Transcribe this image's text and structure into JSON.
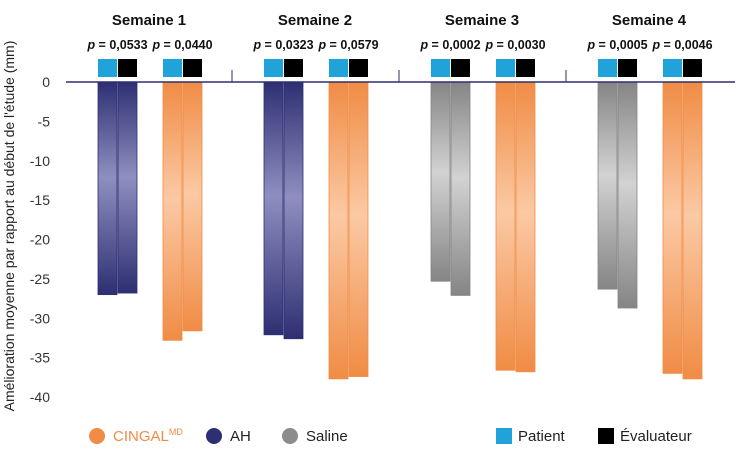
{
  "chart_data": {
    "type": "bar",
    "ylabel": "Amélioration moyenne par rapport au début de l'étude (mm)",
    "ylim": [
      -40,
      0
    ],
    "yticks": [
      "0",
      "-5",
      "-10",
      "-15",
      "-20",
      "-25",
      "-30",
      "-35",
      "-40"
    ],
    "ytick_values": [
      0,
      -5,
      -10,
      -15,
      -20,
      -25,
      -30,
      -35,
      -40
    ],
    "categories": [
      "Semaine 1",
      "Semaine 2",
      "Semaine 3",
      "Semaine 4"
    ],
    "groups": [
      {
        "week": "Semaine 1",
        "p_values": [
          "0,0533",
          "0,0440"
        ],
        "comparator": "AH",
        "comparator_values": {
          "patient": -27.0,
          "evaluateur": -26.8
        },
        "cingal_values": {
          "patient": -32.8,
          "evaluateur": -31.6
        }
      },
      {
        "week": "Semaine 2",
        "p_values": [
          "0,0323",
          "0,0579"
        ],
        "comparator": "AH",
        "comparator_values": {
          "patient": -32.1,
          "evaluateur": -32.6
        },
        "cingal_values": {
          "patient": -37.7,
          "evaluateur": -37.4
        }
      },
      {
        "week": "Semaine 3",
        "p_values": [
          "0,0002",
          "0,0030"
        ],
        "comparator": "Saline",
        "comparator_values": {
          "patient": -25.3,
          "evaluateur": -27.1
        },
        "cingal_values": {
          "patient": -36.6,
          "evaluateur": -36.8
        }
      },
      {
        "week": "Semaine 4",
        "p_values": [
          "0,0005",
          "0,0046"
        ],
        "comparator": "Saline",
        "comparator_values": {
          "patient": -26.3,
          "evaluateur": -28.7
        },
        "cingal_values": {
          "patient": -37.0,
          "evaluateur": -37.7
        }
      }
    ],
    "p_prefix": "p = ",
    "legend": {
      "position": "bottom",
      "treatments": [
        {
          "name": "CINGAL",
          "superscript": "MD",
          "color": "#f08c45"
        },
        {
          "name": "AH",
          "color": "#2e2f72"
        },
        {
          "name": "Saline",
          "color": "#8c8c8c"
        }
      ],
      "raters": [
        {
          "name": "Patient",
          "color": "#1fa3d8"
        },
        {
          "name": "Évaluateur",
          "color": "#000000"
        }
      ]
    },
    "colors": {
      "cingal": "#f08c45",
      "ah": "#2e2f72",
      "saline": "#8c8c8c",
      "patient": "#1fa3d8",
      "evaluateur": "#000000",
      "axis": "#2e2f72"
    }
  }
}
